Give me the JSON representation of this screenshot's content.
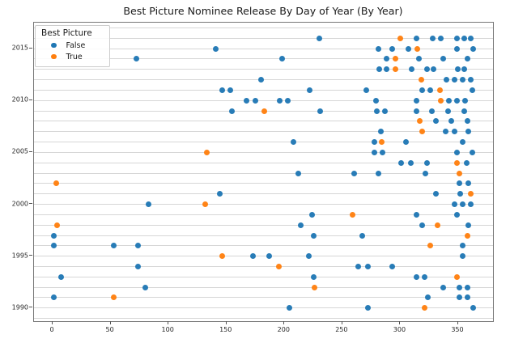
{
  "title": "Best Picture Nominee Release By Day of Year (By Year)",
  "legend": {
    "title": "Best Picture",
    "items": [
      {
        "label": "False",
        "color": "#1f77b4"
      },
      {
        "label": "True",
        "color": "#ff7f0e"
      }
    ]
  },
  "chart_data": {
    "type": "scatter",
    "title": "Best Picture Nominee Release By Day of Year (By Year)",
    "xlabel": "",
    "ylabel": "",
    "x_ticks": [
      0,
      50,
      100,
      150,
      200,
      250,
      300,
      350
    ],
    "y_ticks": [
      1990,
      1995,
      2000,
      2005,
      2010,
      2015
    ],
    "xlim": [
      -16.1,
      380.4
    ],
    "ylim": [
      1988.7,
      2017.5
    ],
    "grid": "horizontal-every-year",
    "legend_position": "upper-left",
    "series": [
      {
        "name": "False",
        "color": "#1f77b4",
        "points": [
          [
            230,
            2016
          ],
          [
            314,
            2016
          ],
          [
            328,
            2016
          ],
          [
            335,
            2016
          ],
          [
            349,
            2016
          ],
          [
            355,
            2016
          ],
          [
            361,
            2016
          ],
          [
            141,
            2015
          ],
          [
            281,
            2015
          ],
          [
            293,
            2015
          ],
          [
            307,
            2015
          ],
          [
            349,
            2015
          ],
          [
            363,
            2015
          ],
          [
            72,
            2014
          ],
          [
            198,
            2014
          ],
          [
            288,
            2014
          ],
          [
            316,
            2014
          ],
          [
            337,
            2014
          ],
          [
            358,
            2014
          ],
          [
            282,
            2013
          ],
          [
            288,
            2013
          ],
          [
            310,
            2013
          ],
          [
            323,
            2013
          ],
          [
            329,
            2013
          ],
          [
            350,
            2013
          ],
          [
            355,
            2013
          ],
          [
            180,
            2012
          ],
          [
            340,
            2012
          ],
          [
            347,
            2012
          ],
          [
            354,
            2012
          ],
          [
            361,
            2012
          ],
          [
            146,
            2011
          ],
          [
            153,
            2011
          ],
          [
            222,
            2011
          ],
          [
            271,
            2011
          ],
          [
            319,
            2011
          ],
          [
            326,
            2011
          ],
          [
            362,
            2011
          ],
          [
            167,
            2010
          ],
          [
            175,
            2010
          ],
          [
            196,
            2010
          ],
          [
            203,
            2010
          ],
          [
            279,
            2010
          ],
          [
            314,
            2010
          ],
          [
            342,
            2010
          ],
          [
            349,
            2010
          ],
          [
            356,
            2010
          ],
          [
            155,
            2009
          ],
          [
            231,
            2009
          ],
          [
            280,
            2009
          ],
          [
            287,
            2009
          ],
          [
            314,
            2009
          ],
          [
            327,
            2009
          ],
          [
            341,
            2009
          ],
          [
            355,
            2009
          ],
          [
            331,
            2008
          ],
          [
            344,
            2008
          ],
          [
            358,
            2008
          ],
          [
            283,
            2007
          ],
          [
            339,
            2007
          ],
          [
            347,
            2007
          ],
          [
            359,
            2007
          ],
          [
            208,
            2006
          ],
          [
            278,
            2006
          ],
          [
            305,
            2006
          ],
          [
            354,
            2006
          ],
          [
            278,
            2005
          ],
          [
            285,
            2005
          ],
          [
            349,
            2005
          ],
          [
            362,
            2005
          ],
          [
            301,
            2004
          ],
          [
            309,
            2004
          ],
          [
            323,
            2004
          ],
          [
            357,
            2004
          ],
          [
            212,
            2003
          ],
          [
            260,
            2003
          ],
          [
            281,
            2003
          ],
          [
            322,
            2003
          ],
          [
            351,
            2002
          ],
          [
            359,
            2002
          ],
          [
            144,
            2001
          ],
          [
            331,
            2001
          ],
          [
            352,
            2001
          ],
          [
            83,
            2000
          ],
          [
            347,
            2000
          ],
          [
            354,
            2000
          ],
          [
            361,
            2000
          ],
          [
            224,
            1999
          ],
          [
            314,
            1999
          ],
          [
            349,
            1999
          ],
          [
            214,
            1998
          ],
          [
            319,
            1998
          ],
          [
            359,
            1998
          ],
          [
            1,
            1997
          ],
          [
            225,
            1997
          ],
          [
            267,
            1997
          ],
          [
            1,
            1996
          ],
          [
            53,
            1996
          ],
          [
            74,
            1996
          ],
          [
            354,
            1996
          ],
          [
            173,
            1995
          ],
          [
            187,
            1995
          ],
          [
            221,
            1995
          ],
          [
            354,
            1995
          ],
          [
            74,
            1994
          ],
          [
            264,
            1994
          ],
          [
            272,
            1994
          ],
          [
            293,
            1994
          ],
          [
            7,
            1993
          ],
          [
            225,
            1993
          ],
          [
            314,
            1993
          ],
          [
            321,
            1993
          ],
          [
            80,
            1992
          ],
          [
            337,
            1992
          ],
          [
            351,
            1992
          ],
          [
            358,
            1992
          ],
          [
            1,
            1991
          ],
          [
            324,
            1991
          ],
          [
            351,
            1991
          ],
          [
            358,
            1991
          ],
          [
            204,
            1990
          ],
          [
            272,
            1990
          ],
          [
            363,
            1990
          ]
        ]
      },
      {
        "name": "True",
        "color": "#ff7f0e",
        "points": [
          [
            300,
            2016
          ],
          [
            315,
            2015
          ],
          [
            296,
            2014
          ],
          [
            296,
            2013
          ],
          [
            318,
            2012
          ],
          [
            334,
            2011
          ],
          [
            335,
            2010
          ],
          [
            183,
            2009
          ],
          [
            317,
            2008
          ],
          [
            319,
            2007
          ],
          [
            284,
            2006
          ],
          [
            133,
            2005
          ],
          [
            349,
            2004
          ],
          [
            351,
            2003
          ],
          [
            3,
            2002
          ],
          [
            361,
            2001
          ],
          [
            132,
            2000
          ],
          [
            259,
            1999
          ],
          [
            4,
            1998
          ],
          [
            332,
            1998
          ],
          [
            358,
            1997
          ],
          [
            326,
            1996
          ],
          [
            146,
            1995
          ],
          [
            195,
            1994
          ],
          [
            349,
            1993
          ],
          [
            226,
            1992
          ],
          [
            53,
            1991
          ],
          [
            321,
            1990
          ]
        ]
      }
    ]
  }
}
